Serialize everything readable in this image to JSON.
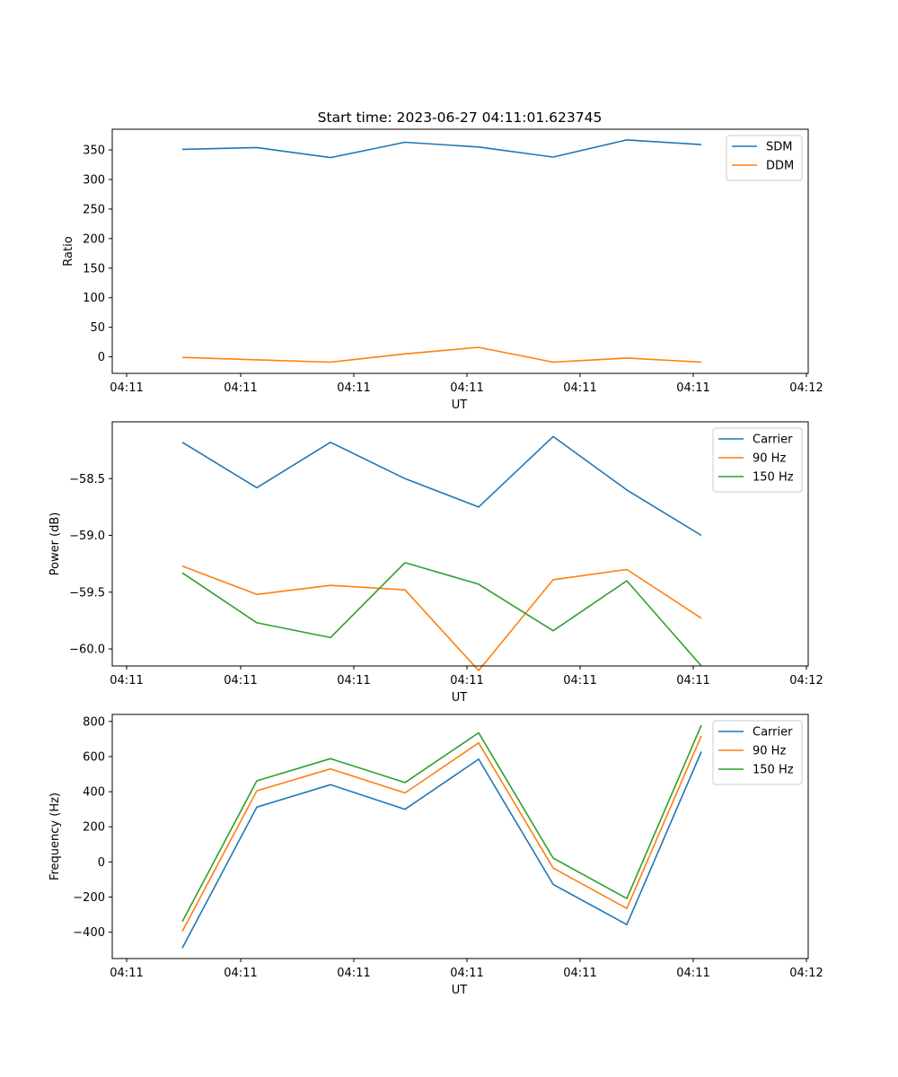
{
  "figure_title": "Start time: 2023-06-27 04:11:01.623745",
  "chart_data": [
    {
      "type": "line",
      "title": "Start time: 2023-06-27 04:11:01.623745",
      "xlabel": "UT",
      "ylabel": "Ratio",
      "x_tick_labels": [
        "04:11",
        "04:11",
        "04:11",
        "04:11",
        "04:11",
        "04:11",
        "04:12"
      ],
      "y_ticks": [
        0,
        50,
        100,
        150,
        200,
        250,
        300,
        350
      ],
      "y_tick_labels": [
        "0",
        "50",
        "100",
        "150",
        "200",
        "250",
        "300",
        "350"
      ],
      "ylim": [
        -28,
        385
      ],
      "legend_position": "top-right",
      "grid": false,
      "series": [
        {
          "name": "SDM",
          "color": "#1f77b4",
          "values": [
            351,
            354,
            337,
            363,
            355,
            338,
            367,
            359
          ]
        },
        {
          "name": "DDM",
          "color": "#ff7f0e",
          "values": [
            -1,
            -5,
            -9,
            5,
            16,
            -9,
            -2,
            -9
          ]
        }
      ]
    },
    {
      "type": "line",
      "xlabel": "UT",
      "ylabel": "Power (dB)",
      "x_tick_labels": [
        "04:11",
        "04:11",
        "04:11",
        "04:11",
        "04:11",
        "04:11",
        "04:12"
      ],
      "y_ticks": [
        -60.0,
        -59.5,
        -59.0,
        -58.5
      ],
      "y_tick_labels": [
        "−60.0",
        "−59.5",
        "−59.0",
        "−58.5"
      ],
      "ylim": [
        -60.15,
        -58.0
      ],
      "legend_position": "top-right",
      "grid": false,
      "series": [
        {
          "name": "Carrier",
          "color": "#1f77b4",
          "values": [
            -58.18,
            -58.58,
            -58.18,
            -58.5,
            -58.75,
            -58.13,
            -58.6,
            -59.0
          ]
        },
        {
          "name": "90 Hz",
          "color": "#ff7f0e",
          "values": [
            -59.27,
            -59.52,
            -59.44,
            -59.48,
            -60.19,
            -59.39,
            -59.3,
            -59.73
          ]
        },
        {
          "name": "150 Hz",
          "color": "#2ca02c",
          "values": [
            -59.33,
            -59.77,
            -59.9,
            -59.24,
            -59.43,
            -59.84,
            -59.4,
            -60.15
          ]
        }
      ]
    },
    {
      "type": "line",
      "xlabel": "UT",
      "ylabel": "Frequency (Hz)",
      "x_tick_labels": [
        "04:11",
        "04:11",
        "04:11",
        "04:11",
        "04:11",
        "04:11",
        "04:12"
      ],
      "y_ticks": [
        -400,
        -200,
        0,
        200,
        400,
        600,
        800
      ],
      "y_tick_labels": [
        "−400",
        "−200",
        "0",
        "200",
        "400",
        "600",
        "800"
      ],
      "ylim": [
        -550,
        840
      ],
      "legend_position": "top-right",
      "grid": false,
      "series": [
        {
          "name": "Carrier",
          "color": "#1f77b4",
          "values": [
            -490,
            312,
            440,
            300,
            585,
            -128,
            -357,
            628
          ]
        },
        {
          "name": "90 Hz",
          "color": "#ff7f0e",
          "values": [
            -395,
            405,
            530,
            393,
            678,
            -35,
            -265,
            718
          ]
        },
        {
          "name": "150 Hz",
          "color": "#2ca02c",
          "values": [
            -340,
            462,
            588,
            452,
            735,
            22,
            -208,
            778
          ]
        }
      ]
    }
  ]
}
